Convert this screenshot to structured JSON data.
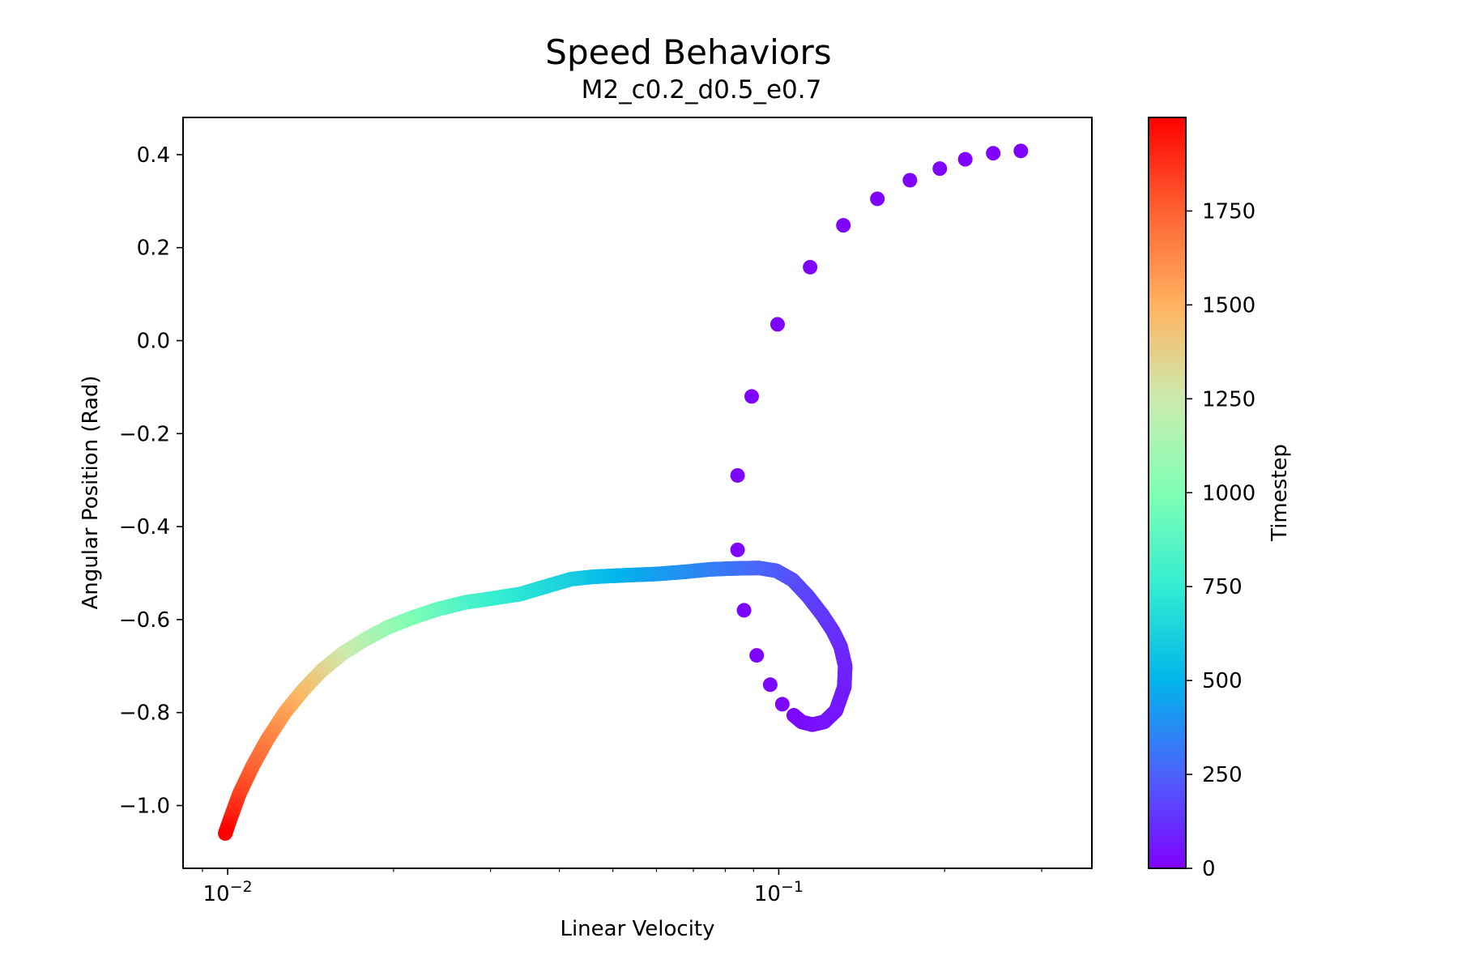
{
  "chart_data": {
    "type": "scatter",
    "title": "Speed Behaviors",
    "subtitle": "M2_c0.2_d0.5_e0.7",
    "xlabel": "Linear Velocity",
    "ylabel": "Angular Position (Rad)",
    "xscale": "log",
    "xlim": [
      0.0083,
      0.37
    ],
    "ylim": [
      -1.135,
      0.48
    ],
    "grid": false,
    "x_tick_labels": [
      {
        "value": 0.01,
        "base": "10",
        "exp": "−2"
      },
      {
        "value": 0.1,
        "base": "10",
        "exp": "−1"
      }
    ],
    "y_ticks": [
      0.4,
      0.2,
      0.0,
      -0.2,
      -0.4,
      -0.6,
      -0.8,
      -1.0
    ],
    "y_tick_labels": [
      "0.4",
      "0.2",
      "0.0",
      "−0.2",
      "−0.4",
      "−0.6",
      "−0.8",
      "−1.0"
    ],
    "colorbar": {
      "label": "Timestep",
      "range": [
        0,
        1999
      ],
      "ticks": [
        0,
        250,
        500,
        750,
        1000,
        1250,
        1500,
        1750
      ],
      "tick_labels": [
        "0",
        "250",
        "500",
        "750",
        "1000",
        "1250",
        "1500",
        "1750"
      ],
      "colormap": "rainbow"
    },
    "sparse_points": [
      {
        "x": 0.275,
        "y": 0.408,
        "t": 1
      },
      {
        "x": 0.245,
        "y": 0.403,
        "t": 2
      },
      {
        "x": 0.218,
        "y": 0.39,
        "t": 3
      },
      {
        "x": 0.196,
        "y": 0.37,
        "t": 4
      },
      {
        "x": 0.173,
        "y": 0.345,
        "t": 5
      },
      {
        "x": 0.151,
        "y": 0.305,
        "t": 6
      },
      {
        "x": 0.131,
        "y": 0.248,
        "t": 7
      },
      {
        "x": 0.114,
        "y": 0.158,
        "t": 8
      },
      {
        "x": 0.0995,
        "y": 0.035,
        "t": 9
      },
      {
        "x": 0.0893,
        "y": -0.12,
        "t": 10
      },
      {
        "x": 0.0842,
        "y": -0.29,
        "t": 11
      },
      {
        "x": 0.0842,
        "y": -0.45,
        "t": 12
      },
      {
        "x": 0.0865,
        "y": -0.58,
        "t": 13
      },
      {
        "x": 0.0912,
        "y": -0.677,
        "t": 14
      },
      {
        "x": 0.0965,
        "y": -0.74,
        "t": 15
      },
      {
        "x": 0.1015,
        "y": -0.782,
        "t": 16
      },
      {
        "x": 0.1065,
        "y": -0.806,
        "t": 17
      }
    ],
    "trajectory_path": [
      {
        "x": 0.1065,
        "y": -0.806,
        "t": 18
      },
      {
        "x": 0.11,
        "y": -0.82,
        "t": 25
      },
      {
        "x": 0.115,
        "y": -0.826,
        "t": 35
      },
      {
        "x": 0.121,
        "y": -0.82,
        "t": 45
      },
      {
        "x": 0.127,
        "y": -0.796,
        "t": 55
      },
      {
        "x": 0.1315,
        "y": -0.745,
        "t": 70
      },
      {
        "x": 0.132,
        "y": -0.7,
        "t": 85
      },
      {
        "x": 0.1295,
        "y": -0.658,
        "t": 100
      },
      {
        "x": 0.1255,
        "y": -0.625,
        "t": 115
      },
      {
        "x": 0.12,
        "y": -0.59,
        "t": 135
      },
      {
        "x": 0.113,
        "y": -0.55,
        "t": 160
      },
      {
        "x": 0.106,
        "y": -0.515,
        "t": 190
      },
      {
        "x": 0.099,
        "y": -0.495,
        "t": 220
      },
      {
        "x": 0.092,
        "y": -0.489,
        "t": 250
      },
      {
        "x": 0.083,
        "y": -0.49,
        "t": 290
      },
      {
        "x": 0.075,
        "y": -0.492,
        "t": 330
      },
      {
        "x": 0.068,
        "y": -0.497,
        "t": 370
      },
      {
        "x": 0.06,
        "y": -0.502,
        "t": 420
      },
      {
        "x": 0.052,
        "y": -0.505,
        "t": 480
      },
      {
        "x": 0.046,
        "y": -0.508,
        "t": 540
      },
      {
        "x": 0.042,
        "y": -0.513,
        "t": 600
      },
      {
        "x": 0.038,
        "y": -0.528,
        "t": 650
      },
      {
        "x": 0.034,
        "y": -0.545,
        "t": 700
      },
      {
        "x": 0.03,
        "y": -0.555,
        "t": 760
      },
      {
        "x": 0.027,
        "y": -0.563,
        "t": 820
      },
      {
        "x": 0.024,
        "y": -0.578,
        "t": 900
      },
      {
        "x": 0.0215,
        "y": -0.597,
        "t": 980
      },
      {
        "x": 0.0195,
        "y": -0.617,
        "t": 1060
      },
      {
        "x": 0.0178,
        "y": -0.642,
        "t": 1140
      },
      {
        "x": 0.0162,
        "y": -0.672,
        "t": 1240
      },
      {
        "x": 0.0148,
        "y": -0.71,
        "t": 1340
      },
      {
        "x": 0.0137,
        "y": -0.752,
        "t": 1440
      },
      {
        "x": 0.0127,
        "y": -0.8,
        "t": 1540
      },
      {
        "x": 0.0118,
        "y": -0.858,
        "t": 1640
      },
      {
        "x": 0.0111,
        "y": -0.915,
        "t": 1730
      },
      {
        "x": 0.0105,
        "y": -0.975,
        "t": 1820
      },
      {
        "x": 0.0101,
        "y": -1.03,
        "t": 1920
      },
      {
        "x": 0.0099,
        "y": -1.06,
        "t": 1999
      }
    ]
  }
}
